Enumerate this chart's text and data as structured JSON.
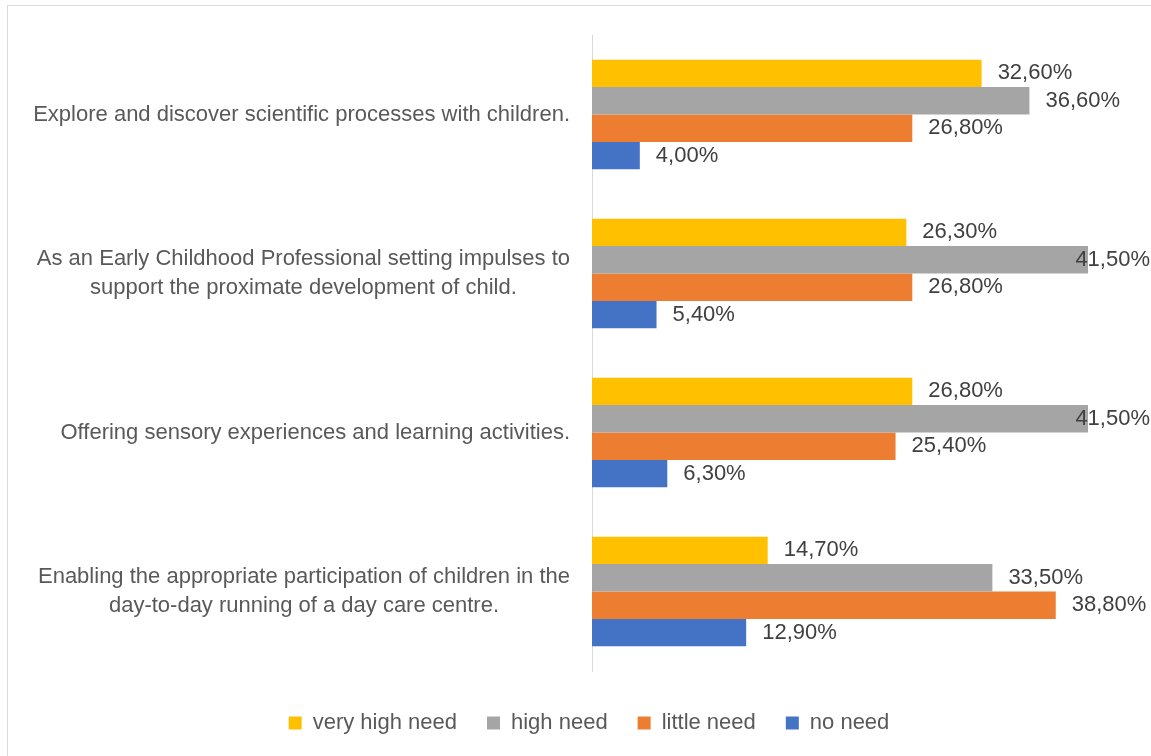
{
  "chart_data": {
    "type": "bar",
    "orientation": "horizontal",
    "categories": [
      "Explore and discover scientific processes with children.",
      "As an Early Childhood Professional setting impulses to support the proximate development of child.",
      "Offering sensory experiences and learning activities.",
      "Enabling the appropriate participation of children in the day-to-day running of a day care centre."
    ],
    "series": [
      {
        "name": "very high need",
        "color": "#ffc000",
        "values": [
          32.6,
          26.3,
          26.8,
          14.7
        ],
        "value_labels": [
          "32,60%",
          "26,30%",
          "26,80%",
          "14,70%"
        ]
      },
      {
        "name": "high need",
        "color": "#a5a5a5",
        "values": [
          36.6,
          41.5,
          41.5,
          33.5
        ],
        "value_labels": [
          "36,60%",
          "41,50%",
          "41,50%",
          "33,50%"
        ]
      },
      {
        "name": "little need",
        "color": "#ed7d31",
        "values": [
          26.8,
          26.8,
          25.4,
          38.8
        ],
        "value_labels": [
          "26,80%",
          "26,80%",
          "25,40%",
          "38,80%"
        ]
      },
      {
        "name": "no need",
        "color": "#4472c4",
        "values": [
          4.0,
          5.4,
          6.3,
          12.9
        ],
        "value_labels": [
          "4,00%",
          "5,40%",
          "6,30%",
          "12,90%"
        ]
      }
    ],
    "legend": "bottom"
  }
}
